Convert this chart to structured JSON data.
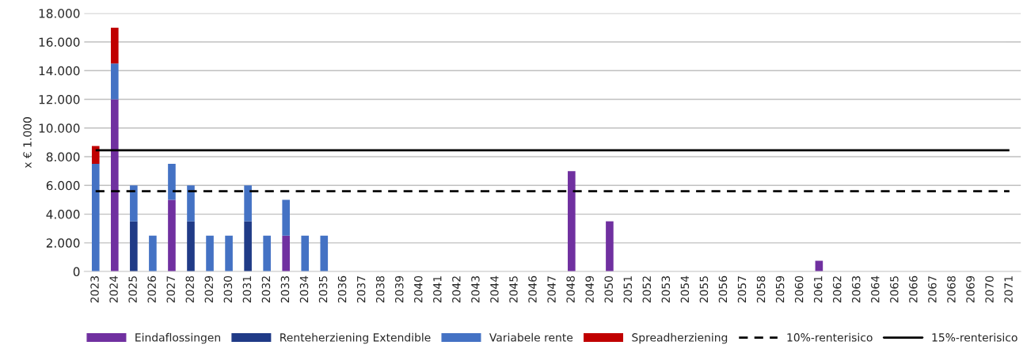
{
  "chart_data": {
    "type": "bar",
    "stacked": true,
    "ylabel": "x € 1.000",
    "categories": [
      "2023",
      "2024",
      "2025",
      "2026",
      "2027",
      "2028",
      "2029",
      "2030",
      "2031",
      "2032",
      "2033",
      "2034",
      "2035",
      "2036",
      "2037",
      "2038",
      "2039",
      "2040",
      "2041",
      "2042",
      "2043",
      "2044",
      "2045",
      "2046",
      "2047",
      "2048",
      "2049",
      "2050",
      "2051",
      "2052",
      "2053",
      "2054",
      "2055",
      "2056",
      "2057",
      "2058",
      "2059",
      "2060",
      "2061",
      "2062",
      "2063",
      "2064",
      "2065",
      "2066",
      "2067",
      "2068",
      "2069",
      "2070",
      "2071"
    ],
    "series": [
      {
        "name": "Eindaflossingen",
        "color": "#7030a0",
        "values": [
          null,
          12000,
          null,
          null,
          5000,
          null,
          null,
          null,
          null,
          null,
          2500,
          null,
          null,
          null,
          null,
          null,
          null,
          null,
          null,
          null,
          null,
          null,
          null,
          null,
          null,
          7000,
          null,
          3500,
          null,
          null,
          null,
          null,
          null,
          null,
          null,
          null,
          null,
          null,
          750,
          null,
          null,
          null,
          null,
          null,
          null,
          null,
          null,
          null,
          null
        ]
      },
      {
        "name": "Renteherziening Extendible",
        "color": "#203b87",
        "values": [
          null,
          null,
          3500,
          null,
          null,
          3500,
          null,
          null,
          3500,
          null,
          null,
          null,
          null,
          null,
          null,
          null,
          null,
          null,
          null,
          null,
          null,
          null,
          null,
          null,
          null,
          null,
          null,
          null,
          null,
          null,
          null,
          null,
          null,
          null,
          null,
          null,
          null,
          null,
          null,
          null,
          null,
          null,
          null,
          null,
          null,
          null,
          null,
          null,
          null
        ]
      },
      {
        "name": "Variabele rente",
        "color": "#4472c4",
        "values": [
          7500,
          2500,
          2500,
          2500,
          2500,
          2500,
          2500,
          2500,
          2500,
          2500,
          2500,
          2500,
          2500,
          null,
          null,
          null,
          null,
          null,
          null,
          null,
          null,
          null,
          null,
          null,
          null,
          null,
          null,
          null,
          null,
          null,
          null,
          null,
          null,
          null,
          null,
          null,
          null,
          null,
          null,
          null,
          null,
          null,
          null,
          null,
          null,
          null,
          null,
          null,
          null
        ]
      },
      {
        "name": "Spreadherziening",
        "color": "#c00000",
        "values": [
          1250,
          2500,
          null,
          null,
          null,
          null,
          null,
          null,
          null,
          null,
          null,
          null,
          null,
          null,
          null,
          null,
          null,
          null,
          null,
          null,
          null,
          null,
          null,
          null,
          null,
          null,
          null,
          null,
          null,
          null,
          null,
          null,
          null,
          null,
          null,
          null,
          null,
          null,
          null,
          null,
          null,
          null,
          null,
          null,
          null,
          null,
          null,
          null,
          null
        ]
      }
    ],
    "ref_lines": [
      {
        "axis": "y",
        "value": 5600,
        "label": "10%-renterisico",
        "color": "#000000",
        "line_style": "dashed"
      },
      {
        "axis": "y",
        "value": 8450,
        "label": "15%-renterisico",
        "color": "#000000",
        "line_style": "solid"
      }
    ],
    "ylim": [
      0,
      18000
    ],
    "yticks": [
      {
        "value": 0,
        "label": "0"
      },
      {
        "value": 2000,
        "label": "2.000"
      },
      {
        "value": 4000,
        "label": "4.000"
      },
      {
        "value": 6000,
        "label": "6.000"
      },
      {
        "value": 8000,
        "label": "8.000"
      },
      {
        "value": 10000,
        "label": "10.000"
      },
      {
        "value": 12000,
        "label": "12.000"
      },
      {
        "value": 14000,
        "label": "14.000"
      },
      {
        "value": 16000,
        "label": "16.000"
      },
      {
        "value": 18000,
        "label": "18.000"
      }
    ],
    "grid": "y",
    "legend": "bottom"
  }
}
